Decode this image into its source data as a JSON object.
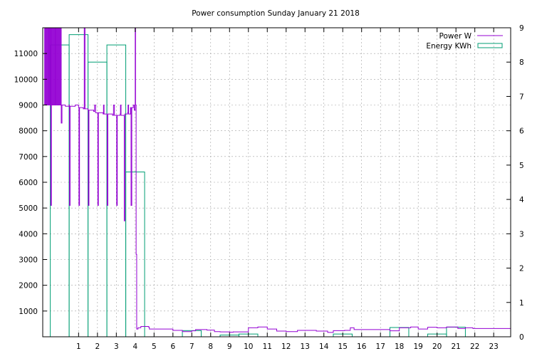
{
  "chart_data": {
    "type": "line",
    "title": "Power consumption Sunday January 21 2018",
    "xlabel": "",
    "ylabel": "",
    "y2label": "",
    "xlim": [
      -0.9,
      23.9
    ],
    "ylim": [
      0,
      12000
    ],
    "y2lim": [
      0,
      9
    ],
    "x_ticks": [
      1,
      2,
      3,
      4,
      5,
      6,
      7,
      8,
      9,
      10,
      11,
      12,
      13,
      14,
      15,
      16,
      17,
      18,
      19,
      20,
      21,
      22,
      23
    ],
    "y_ticks": [
      1000,
      2000,
      3000,
      4000,
      5000,
      6000,
      7000,
      8000,
      9000,
      10000,
      11000
    ],
    "y2_ticks": [
      0,
      1,
      2,
      3,
      4,
      5,
      6,
      7,
      8,
      9
    ],
    "grid": true,
    "legend_position": "top-right",
    "colors": {
      "power": "#9400d3",
      "energy": "#009e73"
    },
    "series": [
      {
        "name": "Power W",
        "axis": "left",
        "style": "line",
        "points": [
          [
            -0.85,
            9000
          ],
          [
            -0.8,
            12000
          ],
          [
            -0.78,
            9000
          ],
          [
            -0.74,
            12000
          ],
          [
            -0.7,
            9000
          ],
          [
            -0.66,
            12000
          ],
          [
            -0.62,
            9000
          ],
          [
            -0.58,
            12000
          ],
          [
            -0.54,
            9000
          ],
          [
            -0.5,
            12000
          ],
          [
            -0.47,
            5100
          ],
          [
            -0.44,
            12000
          ],
          [
            -0.4,
            9000
          ],
          [
            -0.36,
            12000
          ],
          [
            -0.32,
            9000
          ],
          [
            -0.28,
            12000
          ],
          [
            -0.24,
            9000
          ],
          [
            -0.2,
            12000
          ],
          [
            -0.16,
            9000
          ],
          [
            -0.12,
            12000
          ],
          [
            -0.08,
            9000
          ],
          [
            -0.04,
            12000
          ],
          [
            0.0,
            9000
          ],
          [
            0.04,
            12000
          ],
          [
            0.08,
            8300
          ],
          [
            0.12,
            9000
          ],
          [
            0.3,
            8950
          ],
          [
            0.5,
            9000
          ],
          [
            0.52,
            5100
          ],
          [
            0.55,
            8950
          ],
          [
            0.8,
            8950
          ],
          [
            0.82,
            9000
          ],
          [
            1.0,
            8900
          ],
          [
            1.02,
            5100
          ],
          [
            1.05,
            8900
          ],
          [
            1.25,
            8850
          ],
          [
            1.3,
            12000
          ],
          [
            1.34,
            8850
          ],
          [
            1.5,
            8800
          ],
          [
            1.52,
            5100
          ],
          [
            1.55,
            8800
          ],
          [
            1.8,
            8750
          ],
          [
            1.85,
            9000
          ],
          [
            1.9,
            8700
          ],
          [
            2.0,
            8700
          ],
          [
            2.02,
            5100
          ],
          [
            2.05,
            8700
          ],
          [
            2.3,
            8650
          ],
          [
            2.32,
            9000
          ],
          [
            2.35,
            8650
          ],
          [
            2.5,
            8600
          ],
          [
            2.52,
            5100
          ],
          [
            2.55,
            8650
          ],
          [
            2.8,
            8600
          ],
          [
            2.85,
            9000
          ],
          [
            2.9,
            8600
          ],
          [
            3.0,
            8600
          ],
          [
            3.02,
            5100
          ],
          [
            3.05,
            8600
          ],
          [
            3.2,
            8650
          ],
          [
            3.22,
            9000
          ],
          [
            3.25,
            8600
          ],
          [
            3.4,
            8600
          ],
          [
            3.42,
            4500
          ],
          [
            3.45,
            8650
          ],
          [
            3.6,
            8700
          ],
          [
            3.62,
            9000
          ],
          [
            3.65,
            8650
          ],
          [
            3.75,
            8900
          ],
          [
            3.78,
            5100
          ],
          [
            3.82,
            8900
          ],
          [
            3.9,
            9000
          ],
          [
            3.95,
            8800
          ],
          [
            4.0,
            12000
          ],
          [
            4.02,
            9000
          ],
          [
            4.05,
            3200
          ],
          [
            4.08,
            300
          ],
          [
            4.15,
            350
          ],
          [
            4.3,
            400
          ],
          [
            4.7,
            380
          ],
          [
            4.75,
            300
          ],
          [
            6.0,
            250
          ],
          [
            6.5,
            200
          ],
          [
            7.0,
            230
          ],
          [
            7.2,
            280
          ],
          [
            7.8,
            260
          ],
          [
            8.2,
            200
          ],
          [
            8.5,
            190
          ],
          [
            9.0,
            180
          ],
          [
            9.2,
            190
          ],
          [
            10.0,
            350
          ],
          [
            10.5,
            380
          ],
          [
            11.0,
            300
          ],
          [
            11.5,
            220
          ],
          [
            12.0,
            200
          ],
          [
            12.6,
            250
          ],
          [
            13.0,
            250
          ],
          [
            13.6,
            220
          ],
          [
            14.2,
            170
          ],
          [
            14.5,
            240
          ],
          [
            15.1,
            250
          ],
          [
            15.4,
            350
          ],
          [
            15.6,
            280
          ],
          [
            16.5,
            280
          ],
          [
            17.2,
            280
          ],
          [
            17.5,
            230
          ],
          [
            18.0,
            350
          ],
          [
            18.6,
            380
          ],
          [
            19.0,
            300
          ],
          [
            19.5,
            370
          ],
          [
            20.0,
            350
          ],
          [
            20.5,
            380
          ],
          [
            21.1,
            320
          ],
          [
            21.5,
            350
          ],
          [
            21.9,
            320
          ],
          [
            23.9,
            250
          ]
        ]
      },
      {
        "name": "Energy KWh",
        "axis": "right",
        "style": "histogram",
        "values": [
          8.5,
          8.8,
          8.0,
          8.5,
          4.8,
          0.0,
          0.0,
          0.18,
          0.0,
          0.05,
          0.08,
          0.0,
          0.0,
          0.0,
          0.0,
          0.08,
          0.0,
          0.0,
          0.27,
          0.0,
          0.08,
          0.28,
          0.0,
          0.0
        ]
      }
    ]
  }
}
